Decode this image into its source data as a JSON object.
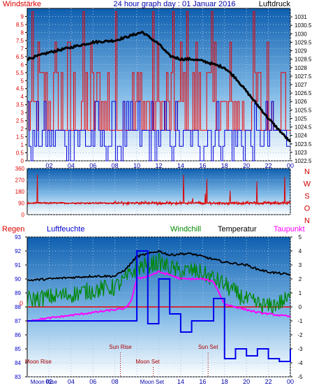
{
  "header": {
    "left_label": "Windstärke",
    "title": "24 hour graph day : 01 Januar 2016",
    "right_label": "Luftdruck"
  },
  "colors": {
    "wind": "#ee0000",
    "gust": "#0000dd",
    "pressure": "#000000",
    "winddir": "#dd0000",
    "humidity": "#0000ee",
    "windchill": "#008800",
    "temperature": "#000000",
    "dewpoint": "#ff00ff",
    "rain": "#ee0000",
    "moon": "#aa0000"
  },
  "chart_data": [
    {
      "type": "line",
      "title": "24 hour graph day : 01 Januar 2016",
      "x_ticks": [
        "02",
        "04",
        "06",
        "08",
        "10",
        "12",
        "14",
        "16",
        "18",
        "20",
        "22",
        "00"
      ],
      "left_axis": {
        "label": "Windstärke",
        "range": [
          0,
          9.5
        ],
        "ticks": [
          "0",
          "0.5",
          "1",
          "1.5",
          "2",
          "2.5",
          "3",
          "3.5",
          "4",
          "4.5",
          "5",
          "5.5",
          "6",
          "6.5",
          "7",
          "7.5",
          "8",
          "8.5",
          "9"
        ]
      },
      "right_axis": {
        "label": "Luftdruck",
        "range": [
          1022.5,
          1031.5
        ],
        "ticks": [
          "1023",
          "1023.5",
          "1024",
          "1024.5",
          "1025",
          "1025.5",
          "1026",
          "1026.5",
          "1027",
          "1027.5",
          "1028",
          "1028.5",
          "1029",
          "1029.5",
          "1030",
          "1030.5",
          "1031"
        ],
        "extra_tick": "1022.5"
      },
      "series": [
        {
          "name": "Luftdruck",
          "axis": "right",
          "x": [
            0,
            2,
            4,
            6,
            8,
            10,
            10.5,
            12,
            13,
            14,
            15,
            16,
            17,
            18,
            19,
            20,
            21,
            22,
            23,
            24
          ],
          "y": [
            1028.5,
            1028.9,
            1029.2,
            1029.5,
            1029.6,
            1030.0,
            1030.1,
            1029.4,
            1028.7,
            1028.5,
            1028.5,
            1028.4,
            1028.2,
            1028.0,
            1027.4,
            1026.6,
            1025.8,
            1025.0,
            1024.3,
            1023.6
          ]
        }
      ]
    },
    {
      "type": "line",
      "title": "",
      "right_labels": [
        "N",
        "W",
        "S",
        "O",
        "N"
      ],
      "left_axis": {
        "range": [
          0,
          360
        ],
        "ticks": [
          "0",
          "90",
          "180",
          "270",
          "360"
        ]
      },
      "series": [
        {
          "name": "",
          "x": [
            0,
            4,
            8,
            10,
            12,
            14,
            16,
            18,
            20,
            22,
            24
          ],
          "y": [
            90,
            90,
            88,
            95,
            92,
            90,
            95,
            98,
            92,
            95,
            92
          ]
        }
      ]
    },
    {
      "type": "line",
      "title": "",
      "legend": [
        "Regen",
        "Luftfeuchte",
        "Windchill",
        "Temperatur",
        "Taupunkt"
      ],
      "left_axis": {
        "label": "",
        "range": [
          83,
          93
        ],
        "ticks": [
          "83",
          "84",
          "85",
          "86",
          "87",
          "88",
          "89",
          "90",
          "91",
          "92",
          "93"
        ]
      },
      "right_axis": {
        "label": "",
        "range": [
          -5,
          5
        ],
        "ticks": [
          "-5",
          "-4",
          "-3",
          "-2",
          "-1",
          "0",
          "1",
          "2",
          "3",
          "4",
          "5"
        ]
      },
      "rain_zero_label": "0",
      "series": [
        {
          "name": "Luftfeuchte",
          "axis": "left",
          "x": [
            0,
            4,
            7,
            8,
            9,
            10,
            11,
            12,
            13,
            14,
            15,
            16,
            17,
            18,
            19,
            20,
            21,
            22,
            23,
            24
          ],
          "y": [
            87.0,
            87.0,
            87.0,
            87.0,
            87.0,
            92.0,
            86.8,
            90.0,
            87.5,
            86.2,
            87.0,
            87.0,
            88.6,
            84.3,
            85.0,
            84.5,
            85.0,
            84.3,
            84.1,
            85.0
          ]
        },
        {
          "name": "Temperatur",
          "axis": "right",
          "x": [
            0,
            2,
            4,
            6,
            8,
            9,
            10,
            11,
            12,
            13,
            14,
            15,
            16,
            17,
            18,
            19,
            20,
            21,
            22,
            23,
            24
          ],
          "y": [
            1.9,
            2.0,
            2.1,
            2.2,
            2.2,
            2.7,
            3.6,
            3.8,
            4.0,
            3.7,
            3.8,
            3.8,
            3.6,
            3.4,
            3.2,
            3.1,
            3.0,
            2.7,
            2.5,
            2.4,
            2.3
          ]
        },
        {
          "name": "Windchill",
          "axis": "right",
          "x": [
            0,
            2,
            4,
            6,
            8,
            9,
            10,
            11,
            12,
            13,
            14,
            15,
            16,
            17,
            18,
            19,
            20,
            21,
            22,
            23,
            24
          ],
          "y": [
            0.5,
            0.7,
            0.9,
            1.2,
            1.4,
            2.0,
            2.8,
            3.0,
            3.2,
            2.8,
            2.5,
            2.6,
            2.4,
            2.0,
            1.6,
            1.0,
            0.5,
            0.2,
            0.0,
            0.3,
            0.6
          ]
        },
        {
          "name": "Taupunkt",
          "axis": "right",
          "x": [
            0,
            2,
            4,
            6,
            8,
            9,
            9.5,
            10,
            11,
            12,
            13,
            14,
            15,
            16,
            17,
            18,
            19,
            20,
            21,
            22,
            23,
            24
          ],
          "y": [
            -1.0,
            -0.8,
            -0.6,
            -0.4,
            -0.2,
            -0.1,
            0.5,
            2.0,
            2.2,
            2.5,
            2.3,
            2.0,
            2.0,
            2.0,
            1.8,
            0.2,
            0.0,
            -0.2,
            -0.4,
            -0.5,
            -0.6,
            -0.7
          ]
        }
      ],
      "events": [
        {
          "label": "Moon Rise",
          "x": 0.3
        },
        {
          "label": "Sun Rise",
          "x": 8.5
        },
        {
          "label": "Moon Set",
          "x": 11.5
        },
        {
          "label": "Sun Set",
          "x": 16.5
        }
      ],
      "x_ticks": [
        "02",
        "04",
        "06",
        "08",
        "10",
        "12",
        "14",
        "16",
        "18",
        "20",
        "22",
        "00"
      ],
      "x_overlay": [
        "Moon Rise",
        "Moon Set"
      ]
    }
  ]
}
